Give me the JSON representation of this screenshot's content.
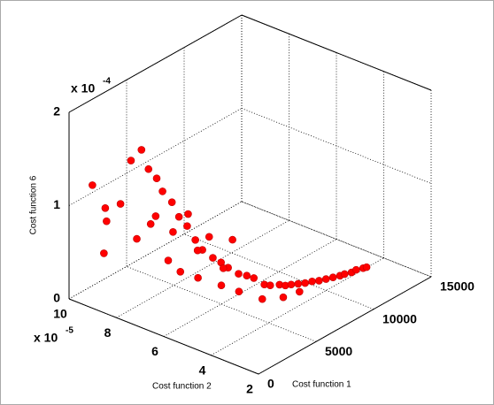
{
  "chart_data": {
    "type": "scatter",
    "xlabel": "Cost function 1",
    "ylabel": "Cost function 2",
    "zlabel": "Cost function 6",
    "xlim": [
      0,
      15000
    ],
    "xticks": [
      0,
      5000,
      10000,
      15000
    ],
    "ylim": [
      2,
      10
    ],
    "yticks": [
      2,
      4,
      6,
      8,
      10
    ],
    "ymultiplier": {
      "base": "x 10",
      "exponent": "-5"
    },
    "zlim": [
      0,
      2
    ],
    "zticks": [
      0,
      1,
      2
    ],
    "zmultiplier": {
      "base": "x 10",
      "exponent": "-4"
    },
    "grid": true,
    "color": "#ff0000",
    "x": [
      1000,
      1500,
      1200,
      2000,
      2500,
      3000,
      3200,
      3500,
      2800,
      3000,
      3800,
      4000,
      4200,
      4500,
      4300,
      4800,
      5000,
      5200,
      5500,
      3500,
      4000,
      5800,
      6000,
      6200,
      6500,
      6800,
      7000,
      5000,
      5500,
      7300,
      7600,
      8000,
      8300,
      8600,
      9000,
      9400,
      9800,
      10200,
      10600,
      11000,
      11400,
      11800,
      12200,
      12600,
      13000,
      13300,
      7000,
      6000,
      4500,
      2000,
      6500,
      7500,
      8500,
      3800,
      5200
    ],
    "y": [
      9.5,
      9.2,
      9.0,
      8.8,
      8.6,
      8.4,
      8.2,
      8.0,
      8.5,
      7.8,
      7.9,
      7.6,
      7.4,
      7.2,
      7.7,
      7.0,
      6.8,
      7.1,
      6.6,
      7.0,
      6.5,
      6.4,
      6.2,
      6.5,
      6.0,
      5.8,
      5.6,
      6.0,
      5.5,
      5.3,
      5.2,
      5.0,
      4.9,
      4.8,
      4.7,
      4.6,
      4.5,
      4.4,
      4.3,
      4.2,
      4.1,
      4.1,
      4.0,
      4.0,
      3.9,
      3.9,
      6.5,
      7.0,
      8.0,
      9.5,
      5.0,
      4.6,
      4.4,
      8.4,
      7.5
    ],
    "z": [
      1.2,
      0.95,
      0.85,
      1.0,
      1.45,
      1.55,
      1.35,
      1.25,
      0.6,
      0.9,
      1.1,
      1.0,
      0.85,
      0.75,
      0.65,
      0.6,
      0.5,
      0.45,
      0.4,
      0.35,
      0.3,
      0.35,
      0.3,
      0.25,
      0.22,
      0.2,
      0.18,
      0.2,
      0.15,
      0.12,
      0.1,
      0.1,
      0.08,
      0.08,
      0.07,
      0.06,
      0.06,
      0.05,
      0.05,
      0.05,
      0.05,
      0.04,
      0.04,
      0.04,
      0.04,
      0.03,
      0.5,
      0.55,
      0.3,
      0.4,
      0.05,
      0.04,
      0.05,
      0.7,
      0.8
    ]
  }
}
